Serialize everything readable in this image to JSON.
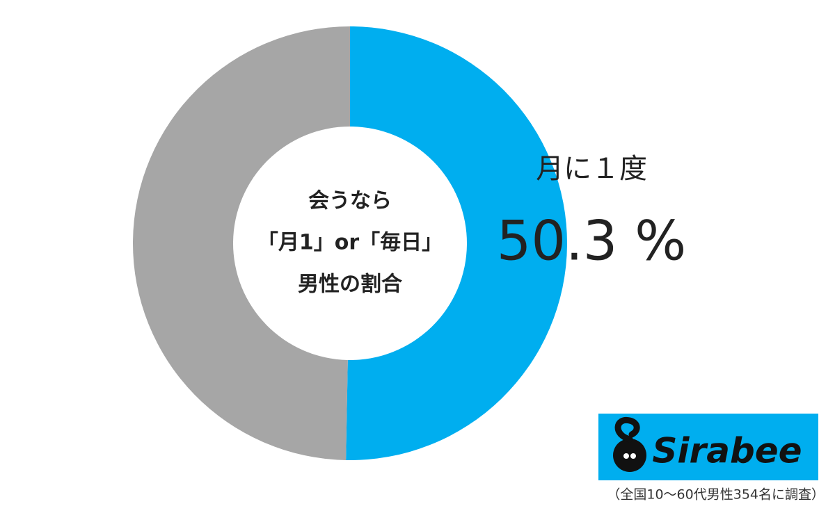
{
  "chart_data": {
    "type": "pie",
    "donut": true,
    "center_text": [
      "会うなら",
      "「月1」or「毎日」",
      "男性の割合"
    ],
    "categories": [
      "月に１度",
      null
    ],
    "values": [
      50.3,
      49.7
    ],
    "value_labels": [
      "50.3 %",
      null
    ],
    "colors": [
      "#00aeef",
      "#a6a6a6"
    ]
  },
  "logo": "Sirabee",
  "footnote": "（全国10～60代男性354名に調査）"
}
